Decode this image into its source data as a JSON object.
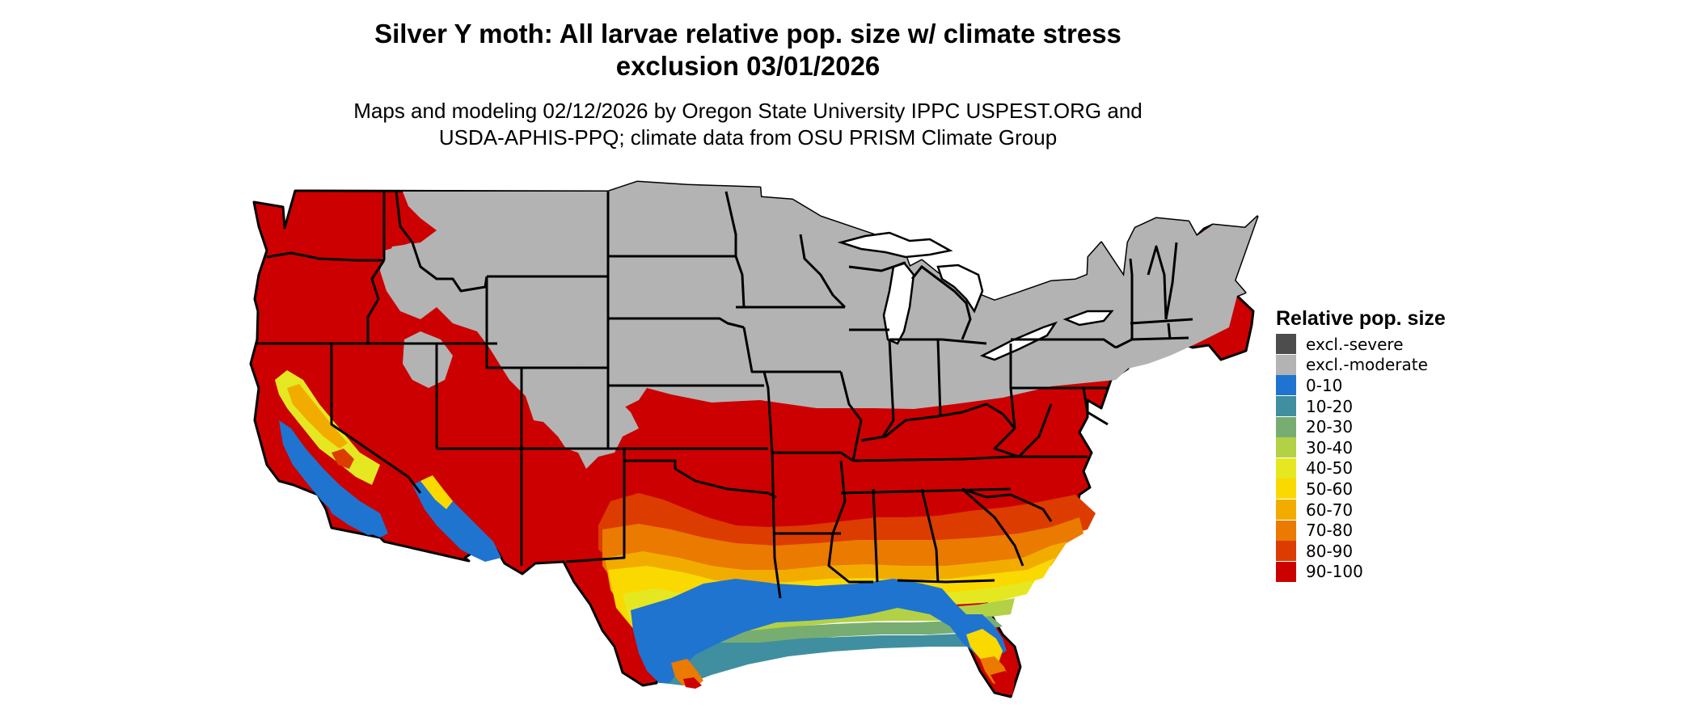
{
  "title_lines": [
    "Silver Y moth: All larvae relative pop. size w/ climate stress",
    "exclusion 03/01/2026"
  ],
  "subtitle_lines": [
    "Maps and modeling 02/12/2026 by Oregon State University IPPC USPEST.ORG and",
    "USDA-APHIS-PPQ; climate data from OSU PRISM Climate Group"
  ],
  "legend": {
    "title": "Relative pop. size",
    "items": [
      {
        "label": "excl.-severe",
        "color": "#4d4d4d"
      },
      {
        "label": "excl.-moderate",
        "color": "#b3b3b3"
      },
      {
        "label": "0-10",
        "color": "#1f74d0"
      },
      {
        "label": "10-20",
        "color": "#3f8fa0"
      },
      {
        "label": "20-30",
        "color": "#78ad72"
      },
      {
        "label": "30-40",
        "color": "#b3d145"
      },
      {
        "label": "40-50",
        "color": "#e5e821"
      },
      {
        "label": "50-60",
        "color": "#fad900"
      },
      {
        "label": "60-70",
        "color": "#f2ac00"
      },
      {
        "label": "70-80",
        "color": "#ea7a00"
      },
      {
        "label": "80-90",
        "color": "#dc3c00"
      },
      {
        "label": "90-100",
        "color": "#cc0000"
      }
    ]
  }
}
